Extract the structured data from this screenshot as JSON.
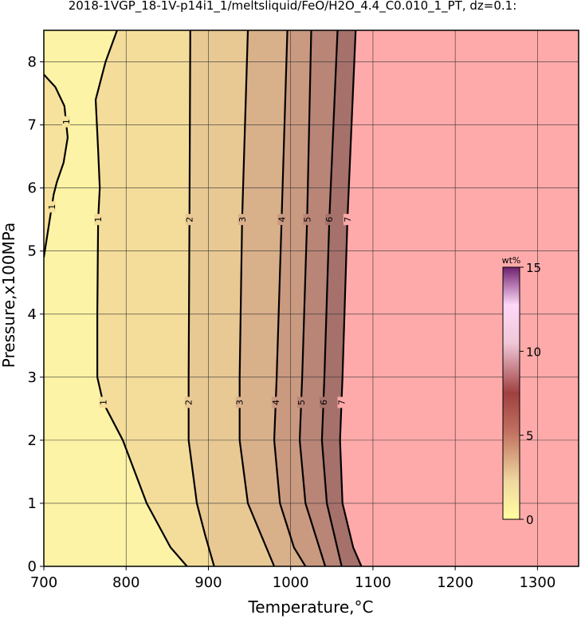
{
  "chart_data": {
    "type": "contour",
    "title": "2018-1VGP_18-1V-p14i1_1/meltsliquid/FeO/H2O_4.4_C0.010_1_PT, dz=0.1:",
    "x_label": "Temperature,°C",
    "y_label": "Pressure,x100MPa",
    "xlim": [
      700,
      1350
    ],
    "ylim": [
      0,
      8.5
    ],
    "xticks": [
      700,
      800,
      900,
      1000,
      1100,
      1200,
      1300
    ],
    "yticks": [
      0,
      1,
      2,
      3,
      4,
      5,
      6,
      7,
      8
    ],
    "grid": true,
    "background": "#fdf3a6",
    "series": [
      {
        "name": "1",
        "color": "#000000",
        "fill": "#f6e29c",
        "x": [
          700,
          714,
          725,
          729,
          724,
          716,
          712,
          706,
          700
        ],
        "y": [
          7.8,
          7.6,
          7.3,
          6.8,
          6.4,
          6.1,
          5.9,
          5.4,
          4.9
        ]
      },
      {
        "name": "1",
        "color": "#000000",
        "fill": "#f4dd9b",
        "x": [
          789,
          775,
          763,
          766,
          768,
          766,
          765,
          765,
          772,
          796,
          825,
          854,
          874
        ],
        "y": [
          8.5,
          8,
          7.4,
          6.6,
          6,
          5.5,
          4,
          3,
          2.6,
          2,
          1,
          0.3,
          0
        ]
      },
      {
        "name": "2",
        "color": "#000000",
        "fill": "#e8c994",
        "x": [
          878,
          877,
          876,
          876,
          886,
          896,
          907
        ],
        "y": [
          8.5,
          5.5,
          3,
          2,
          1,
          0.5,
          0
        ]
      },
      {
        "name": "3",
        "color": "#000000",
        "fill": "#d8b08a",
        "x": [
          948,
          941,
          938,
          938,
          948,
          980
        ],
        "y": [
          8.5,
          5.5,
          3,
          2,
          1,
          0
        ]
      },
      {
        "name": "4",
        "color": "#000000",
        "fill": "#c99a80",
        "x": [
          996,
          989,
          983,
          980,
          987,
          1004,
          1018
        ],
        "y": [
          8.5,
          5.5,
          3,
          2,
          1,
          0.3,
          0
        ]
      },
      {
        "name": "5",
        "color": "#000000",
        "fill": "#b88577",
        "x": [
          1025,
          1020,
          1014,
          1011,
          1018,
          1042
        ],
        "y": [
          8.5,
          5.5,
          3,
          2,
          1,
          0
        ]
      },
      {
        "name": "6",
        "color": "#000000",
        "fill": "#a6716b",
        "x": [
          1057,
          1047,
          1041,
          1038,
          1044,
          1062
        ],
        "y": [
          8.5,
          5.5,
          3,
          2,
          1,
          0
        ]
      },
      {
        "name": "7",
        "color": "#000000",
        "fill": "#ffaaaa",
        "x": [
          1079,
          1069,
          1063,
          1060,
          1063,
          1076,
          1086
        ],
        "y": [
          8.5,
          5.5,
          3,
          2,
          1,
          0.3,
          0
        ]
      }
    ],
    "colorbar": {
      "label": "wt%",
      "lim": [
        0,
        15
      ],
      "ticks": [
        0,
        5,
        10,
        15
      ]
    }
  }
}
